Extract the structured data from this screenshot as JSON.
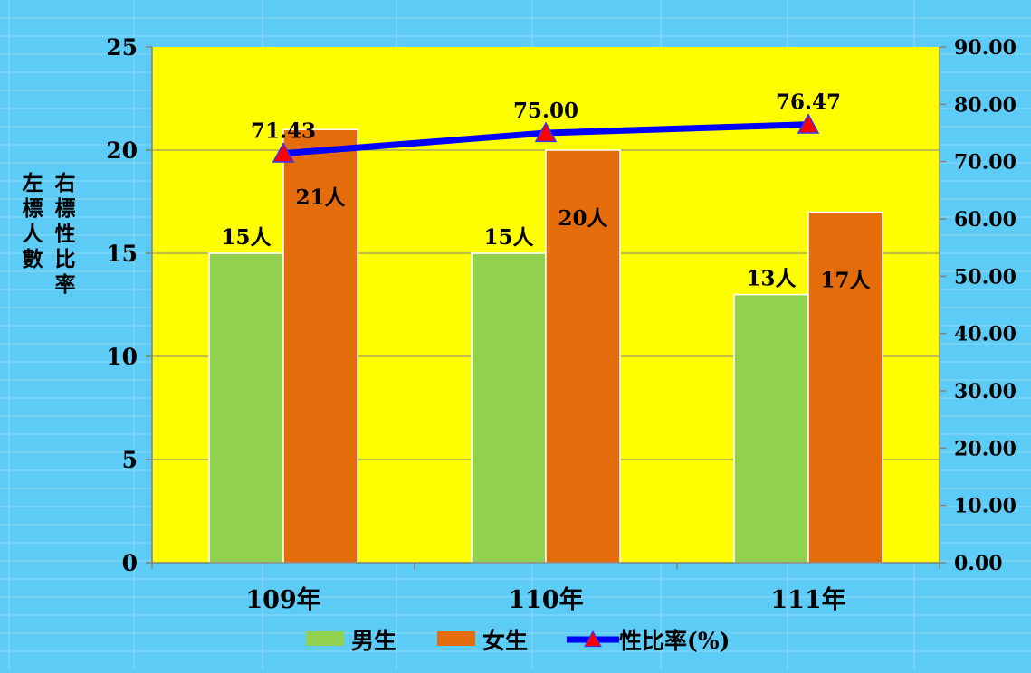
{
  "chart_data": {
    "type": "bar",
    "categories": [
      "109年",
      "110年",
      "111年"
    ],
    "series": [
      {
        "name": "男生",
        "type": "bar",
        "axis": "left",
        "values": [
          15,
          15,
          13
        ],
        "labels": [
          "15人",
          "15人",
          "13人"
        ],
        "color": "#92d050"
      },
      {
        "name": "女生",
        "type": "bar",
        "axis": "left",
        "values": [
          21,
          20,
          17
        ],
        "labels": [
          "21人",
          "20人",
          "17人"
        ],
        "color": "#e46c0a"
      },
      {
        "name": "性比率(%)",
        "type": "line",
        "axis": "right",
        "values": [
          71.43,
          75.0,
          76.47
        ],
        "labels": [
          "71.43",
          "75.00",
          "76.47"
        ],
        "color": "#0000ff",
        "marker_color": "#ff0000"
      }
    ],
    "ylabel_left": "左標人數",
    "ylabel_right": "右標性比率",
    "ylim_left": [
      0,
      25
    ],
    "yticks_left": [
      "0",
      "5",
      "10",
      "15",
      "20",
      "25"
    ],
    "ylim_right": [
      0,
      90
    ],
    "yticks_right": [
      "0.00",
      "10.00",
      "20.00",
      "30.00",
      "40.00",
      "50.00",
      "60.00",
      "70.00",
      "80.00",
      "90.00"
    ],
    "grid": true,
    "legend_position": "bottom",
    "plot_background": "#ffff00",
    "page_background": "#5ccbf5"
  }
}
